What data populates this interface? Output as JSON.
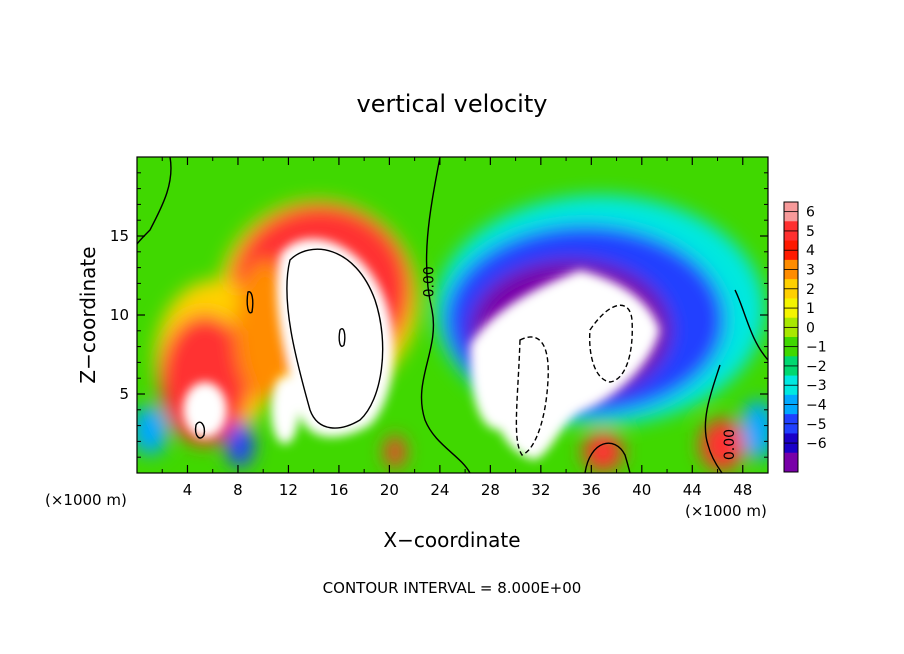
{
  "chart_data": {
    "type": "heatmap",
    "title": "vertical velocity",
    "xlabel": "X−coordinate",
    "ylabel": "Z−coordinate",
    "x_unit_left": "(×1000 m)",
    "x_unit_right": "(×1000 m)",
    "footer": "CONTOUR INTERVAL = 8.000E+00",
    "xlim": [
      0,
      50
    ],
    "ylim": [
      0,
      20
    ],
    "x_ticks": [
      4,
      8,
      12,
      16,
      20,
      24,
      28,
      32,
      36,
      40,
      44,
      48
    ],
    "y_ticks": [
      5,
      10,
      15
    ],
    "x_tick_labels": [
      "4",
      "8",
      "12",
      "16",
      "20",
      "24",
      "28",
      "32",
      "36",
      "40",
      "44",
      "48"
    ],
    "y_tick_labels": [
      "5",
      "10",
      "15"
    ],
    "contour_labels": [
      {
        "text": "0.00",
        "x": 23.5,
        "y": 12.1
      },
      {
        "text": "0.00",
        "x": 47.3,
        "y": 1.8
      }
    ],
    "colorbar": {
      "levels": [
        6,
        5,
        4,
        3,
        2,
        1,
        0,
        -1,
        -2,
        -3,
        -4,
        -5,
        -6
      ],
      "labels": [
        "6",
        "5",
        "4",
        "3",
        "2",
        "1",
        "0",
        "−1",
        "−2",
        "−3",
        "−4",
        "−5",
        "−6"
      ],
      "colors": [
        "#f79a9a",
        "#ff3030",
        "#ff1a00",
        "#ff8c00",
        "#ffd000",
        "#f4f400",
        "#a8e800",
        "#40d800",
        "#00d870",
        "#00e8e0",
        "#00a8ff",
        "#2040ff",
        "#1a00c8",
        "#7800a8"
      ]
    },
    "features": [
      {
        "name": "updraft-core",
        "x": 16,
        "y": 10,
        "value": 9
      },
      {
        "name": "updraft-shoulder",
        "x": 14,
        "y": 14,
        "value": 6
      },
      {
        "name": "updraft-left",
        "x": 5,
        "y": 3,
        "value": 7
      },
      {
        "name": "updraft-small",
        "x": 11,
        "y": 3,
        "value": 6
      },
      {
        "name": "downdraft-core",
        "x": 33,
        "y": 8,
        "value": -9
      },
      {
        "name": "downdraft-halo",
        "x": 35,
        "y": 11,
        "value": -6
      },
      {
        "name": "updraft-37",
        "x": 37,
        "y": 1.2,
        "value": 5
      },
      {
        "name": "updraft-46",
        "x": 46,
        "y": 2,
        "value": 5
      }
    ]
  }
}
